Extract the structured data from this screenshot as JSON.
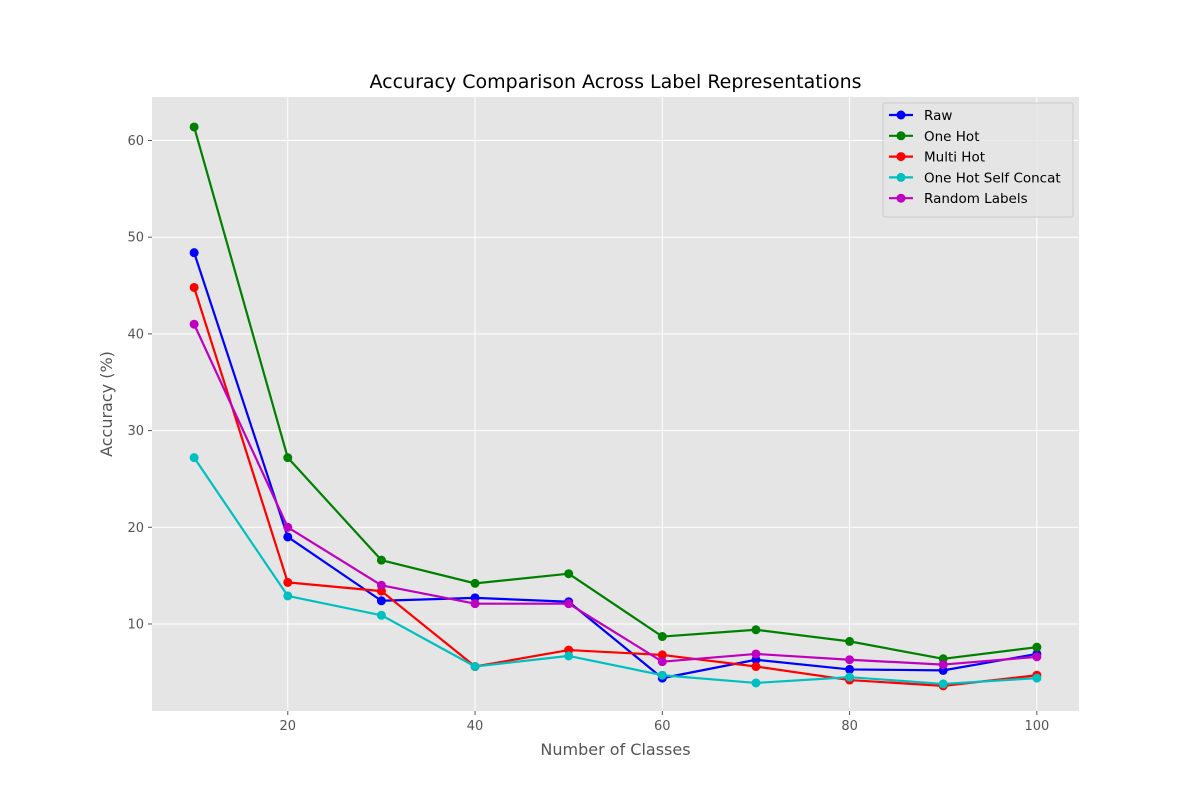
{
  "chart_data": {
    "type": "line",
    "title": "Accuracy Comparison Across Label Representations",
    "xlabel": "Number of Classes",
    "ylabel": "Accuracy (%)",
    "xlim": [
      5.5,
      104.5
    ],
    "ylim": [
      1.0,
      64.5
    ],
    "xticks": [
      20,
      40,
      60,
      80,
      100
    ],
    "yticks": [
      10,
      20,
      30,
      40,
      50,
      60
    ],
    "grid": true,
    "legend_position": "top-right",
    "x": [
      10,
      20,
      30,
      40,
      50,
      60,
      70,
      80,
      90,
      100
    ],
    "series": [
      {
        "name": "Raw",
        "color": "#0000ff",
        "values": [
          48.4,
          19.0,
          12.4,
          12.7,
          12.3,
          4.4,
          6.3,
          5.3,
          5.2,
          6.9
        ]
      },
      {
        "name": "One Hot",
        "color": "#008000",
        "values": [
          61.4,
          27.2,
          16.6,
          14.2,
          15.2,
          8.7,
          9.4,
          8.2,
          6.4,
          7.6
        ]
      },
      {
        "name": "Multi Hot",
        "color": "#ff0000",
        "values": [
          44.8,
          14.3,
          13.4,
          5.6,
          7.3,
          6.8,
          5.6,
          4.2,
          3.6,
          4.7
        ]
      },
      {
        "name": "One Hot Self Concat",
        "color": "#00bfbf",
        "values": [
          27.2,
          12.9,
          10.9,
          5.6,
          6.7,
          4.7,
          3.9,
          4.5,
          3.8,
          4.4
        ]
      },
      {
        "name": "Random Labels",
        "color": "#bf00bf",
        "values": [
          41.0,
          20.0,
          14.0,
          12.1,
          12.1,
          6.1,
          6.9,
          6.3,
          5.8,
          6.6
        ]
      }
    ]
  }
}
